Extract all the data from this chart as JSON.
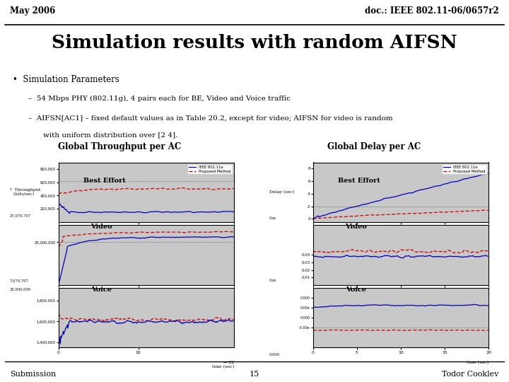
{
  "header_left": "May 2006",
  "header_right": "doc.: IEEE 802.11-06/0657r2",
  "title": "Simulation results with random AIFSN",
  "bullet": "Simulation Parameters",
  "sub1": "54 Mbps PHY (802.11g), 4 pairs each for BE, Video and Voice traffic",
  "sub2_line1": "AIFSN[AC1] – fixed default values as in Table 20.2, except for video; AIFSN for video is random",
  "sub2_line2": "with uniform distribution over [2 4].",
  "left_chart_title": "Global Throughput per AC",
  "right_chart_title": "Global Delay per AC",
  "footer_left": "Submission",
  "footer_center": "15",
  "footer_right": "Todor Cooklev",
  "slide_bg": "#ffffff",
  "chart_bg": "#c8c8c8",
  "blue_color": "#0000bb",
  "red_color": "#cc0000",
  "label_best_effort": "Best Effort",
  "label_video": "Video",
  "label_voice": "Voice",
  "legend_ieee": "IEEE 802.11e",
  "legend_prop": "Proposed Method"
}
